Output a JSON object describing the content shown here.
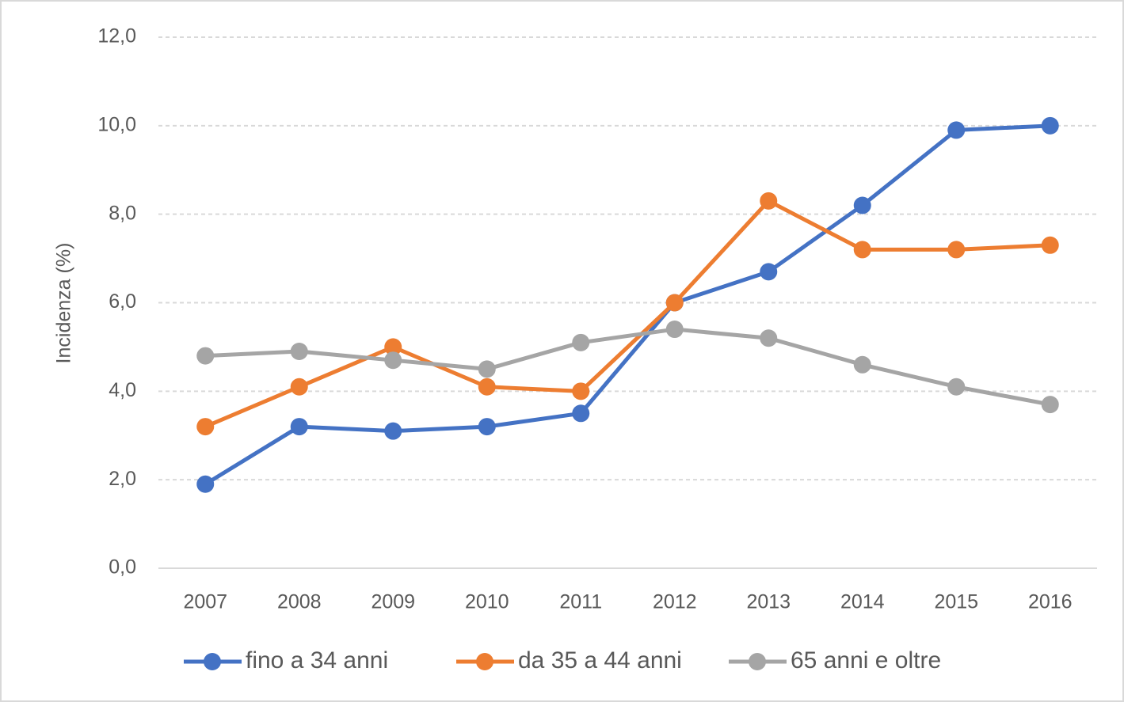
{
  "chart_data": {
    "type": "line",
    "y_label": "Incidenza (%)",
    "categories": [
      "2007",
      "2008",
      "2009",
      "2010",
      "2011",
      "2012",
      "2013",
      "2014",
      "2015",
      "2016"
    ],
    "series": [
      {
        "name": "fino a 34 anni",
        "color": "#4472c4",
        "values": [
          1.9,
          3.2,
          3.1,
          3.2,
          3.5,
          6.0,
          6.7,
          8.2,
          9.9,
          10.0
        ]
      },
      {
        "name": "da 35 a 44 anni",
        "color": "#ed7d31",
        "values": [
          3.2,
          4.1,
          5.0,
          4.1,
          4.0,
          6.0,
          8.3,
          7.2,
          7.2,
          7.3
        ]
      },
      {
        "name": "65 anni e oltre",
        "color": "#a5a5a5",
        "values": [
          4.8,
          4.9,
          4.7,
          4.5,
          5.1,
          5.4,
          5.2,
          4.6,
          4.1,
          3.7
        ]
      }
    ],
    "ylim": [
      0,
      12
    ],
    "yticks": [
      {
        "value": 0,
        "label": "0,0"
      },
      {
        "value": 2,
        "label": "2,0"
      },
      {
        "value": 4,
        "label": "4,0"
      },
      {
        "value": 6,
        "label": "6,0"
      },
      {
        "value": 8,
        "label": "8,0"
      },
      {
        "value": 10,
        "label": "10,0"
      },
      {
        "value": 12,
        "label": "12,0"
      }
    ],
    "grid": true,
    "legend": "bottom"
  }
}
